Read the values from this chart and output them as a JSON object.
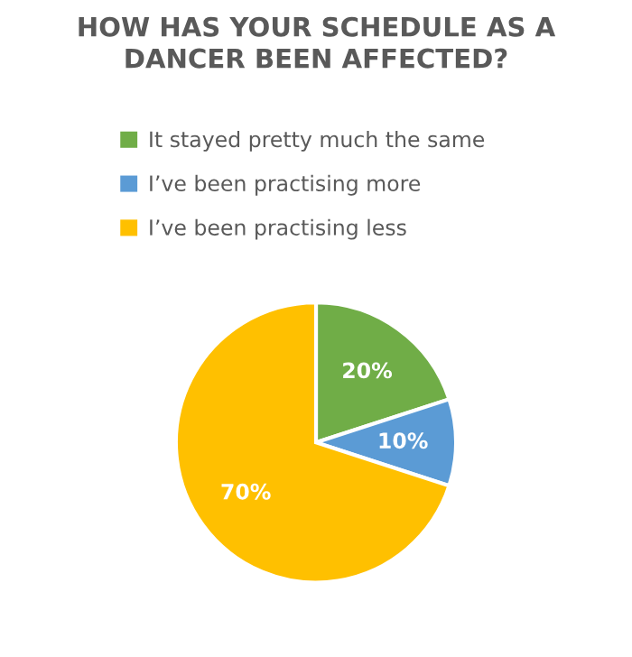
{
  "chart_data": {
    "type": "pie",
    "title": "HOW HAS YOUR SCHEDULE AS A\nDANCER BEEN AFFECTED?",
    "categories": [
      "It stayed pretty much the same",
      "I’ve been practising more",
      "I’ve been practising less"
    ],
    "values": [
      20,
      10,
      70
    ],
    "colors": [
      "#70ad47",
      "#5b9bd5",
      "#ffc000"
    ],
    "value_labels": [
      "20%",
      "10%",
      "70%"
    ],
    "legend": "top"
  }
}
